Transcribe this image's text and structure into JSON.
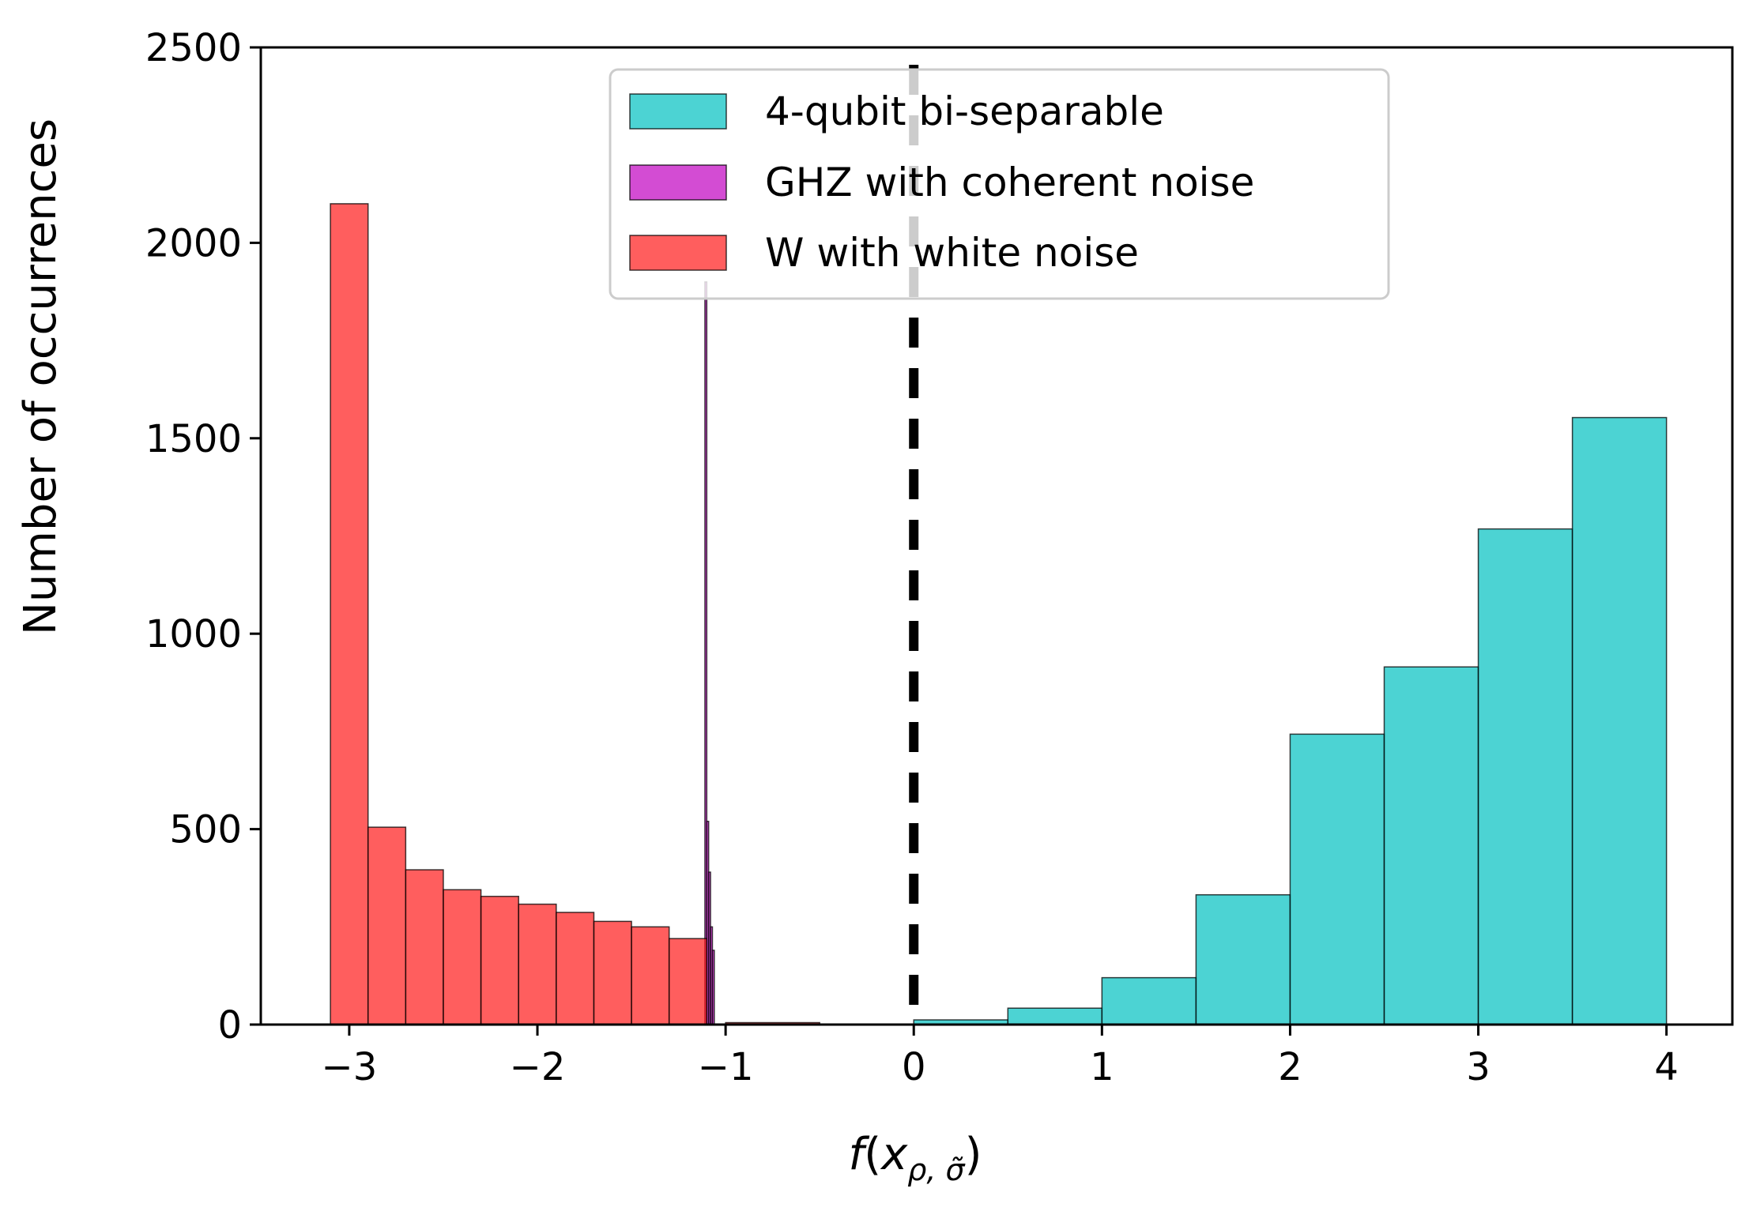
{
  "chart_data": {
    "type": "histogram",
    "xlabel": "f(x_{ρ, σ̃})",
    "ylabel": "Number of occurrences",
    "xlim": [
      -3.47,
      4.35
    ],
    "ylim": [
      0,
      2500
    ],
    "x_ticks": [
      -3,
      -2,
      -1,
      0,
      1,
      2,
      3,
      4
    ],
    "x_tick_labels": [
      "−3",
      "−2",
      "−1",
      "0",
      "1",
      "2",
      "3",
      "4"
    ],
    "y_ticks": [
      0,
      500,
      1000,
      1500,
      2000,
      2500
    ],
    "y_tick_labels": [
      "0",
      "500",
      "1000",
      "1500",
      "2000",
      "2500"
    ],
    "threshold_line": {
      "x": 0,
      "style": "dashed",
      "color": "#000000"
    },
    "legend_position": "upper center",
    "grid": false,
    "series": [
      {
        "name": "4-qubit bi-separable",
        "color": "#00c0c0",
        "bins": [
          {
            "x0": 0.0,
            "x1": 0.5,
            "count": 12
          },
          {
            "x0": 0.5,
            "x1": 1.0,
            "count": 42
          },
          {
            "x0": 1.0,
            "x1": 1.5,
            "count": 120
          },
          {
            "x0": 1.5,
            "x1": 2.0,
            "count": 332
          },
          {
            "x0": 2.0,
            "x1": 2.5,
            "count": 743
          },
          {
            "x0": 2.5,
            "x1": 3.0,
            "count": 915
          },
          {
            "x0": 3.0,
            "x1": 3.5,
            "count": 1268
          },
          {
            "x0": 3.5,
            "x1": 4.0,
            "count": 1553
          }
        ]
      },
      {
        "name": "GHZ with coherent noise",
        "color": "#c000c0",
        "bins": [
          {
            "x0": -1.11,
            "x1": -1.1,
            "count": 1900
          },
          {
            "x0": -1.1,
            "x1": -1.09,
            "count": 520
          },
          {
            "x0": -1.09,
            "x1": -1.08,
            "count": 390
          },
          {
            "x0": -1.08,
            "x1": -1.07,
            "count": 250
          },
          {
            "x0": -1.07,
            "x1": -1.06,
            "count": 190
          }
        ]
      },
      {
        "name": "W with white noise",
        "color": "#ff1a1a",
        "bins": [
          {
            "x0": -3.1,
            "x1": -2.9,
            "count": 2100
          },
          {
            "x0": -2.9,
            "x1": -2.7,
            "count": 505
          },
          {
            "x0": -2.7,
            "x1": -2.5,
            "count": 396
          },
          {
            "x0": -2.5,
            "x1": -2.3,
            "count": 345
          },
          {
            "x0": -2.3,
            "x1": -2.1,
            "count": 328
          },
          {
            "x0": -2.1,
            "x1": -1.9,
            "count": 308
          },
          {
            "x0": -1.9,
            "x1": -1.7,
            "count": 287
          },
          {
            "x0": -1.7,
            "x1": -1.5,
            "count": 264
          },
          {
            "x0": -1.5,
            "x1": -1.3,
            "count": 250
          },
          {
            "x0": -1.3,
            "x1": -1.1,
            "count": 220
          },
          {
            "x0": -1.0,
            "x1": -0.5,
            "count": 5
          }
        ]
      }
    ]
  }
}
